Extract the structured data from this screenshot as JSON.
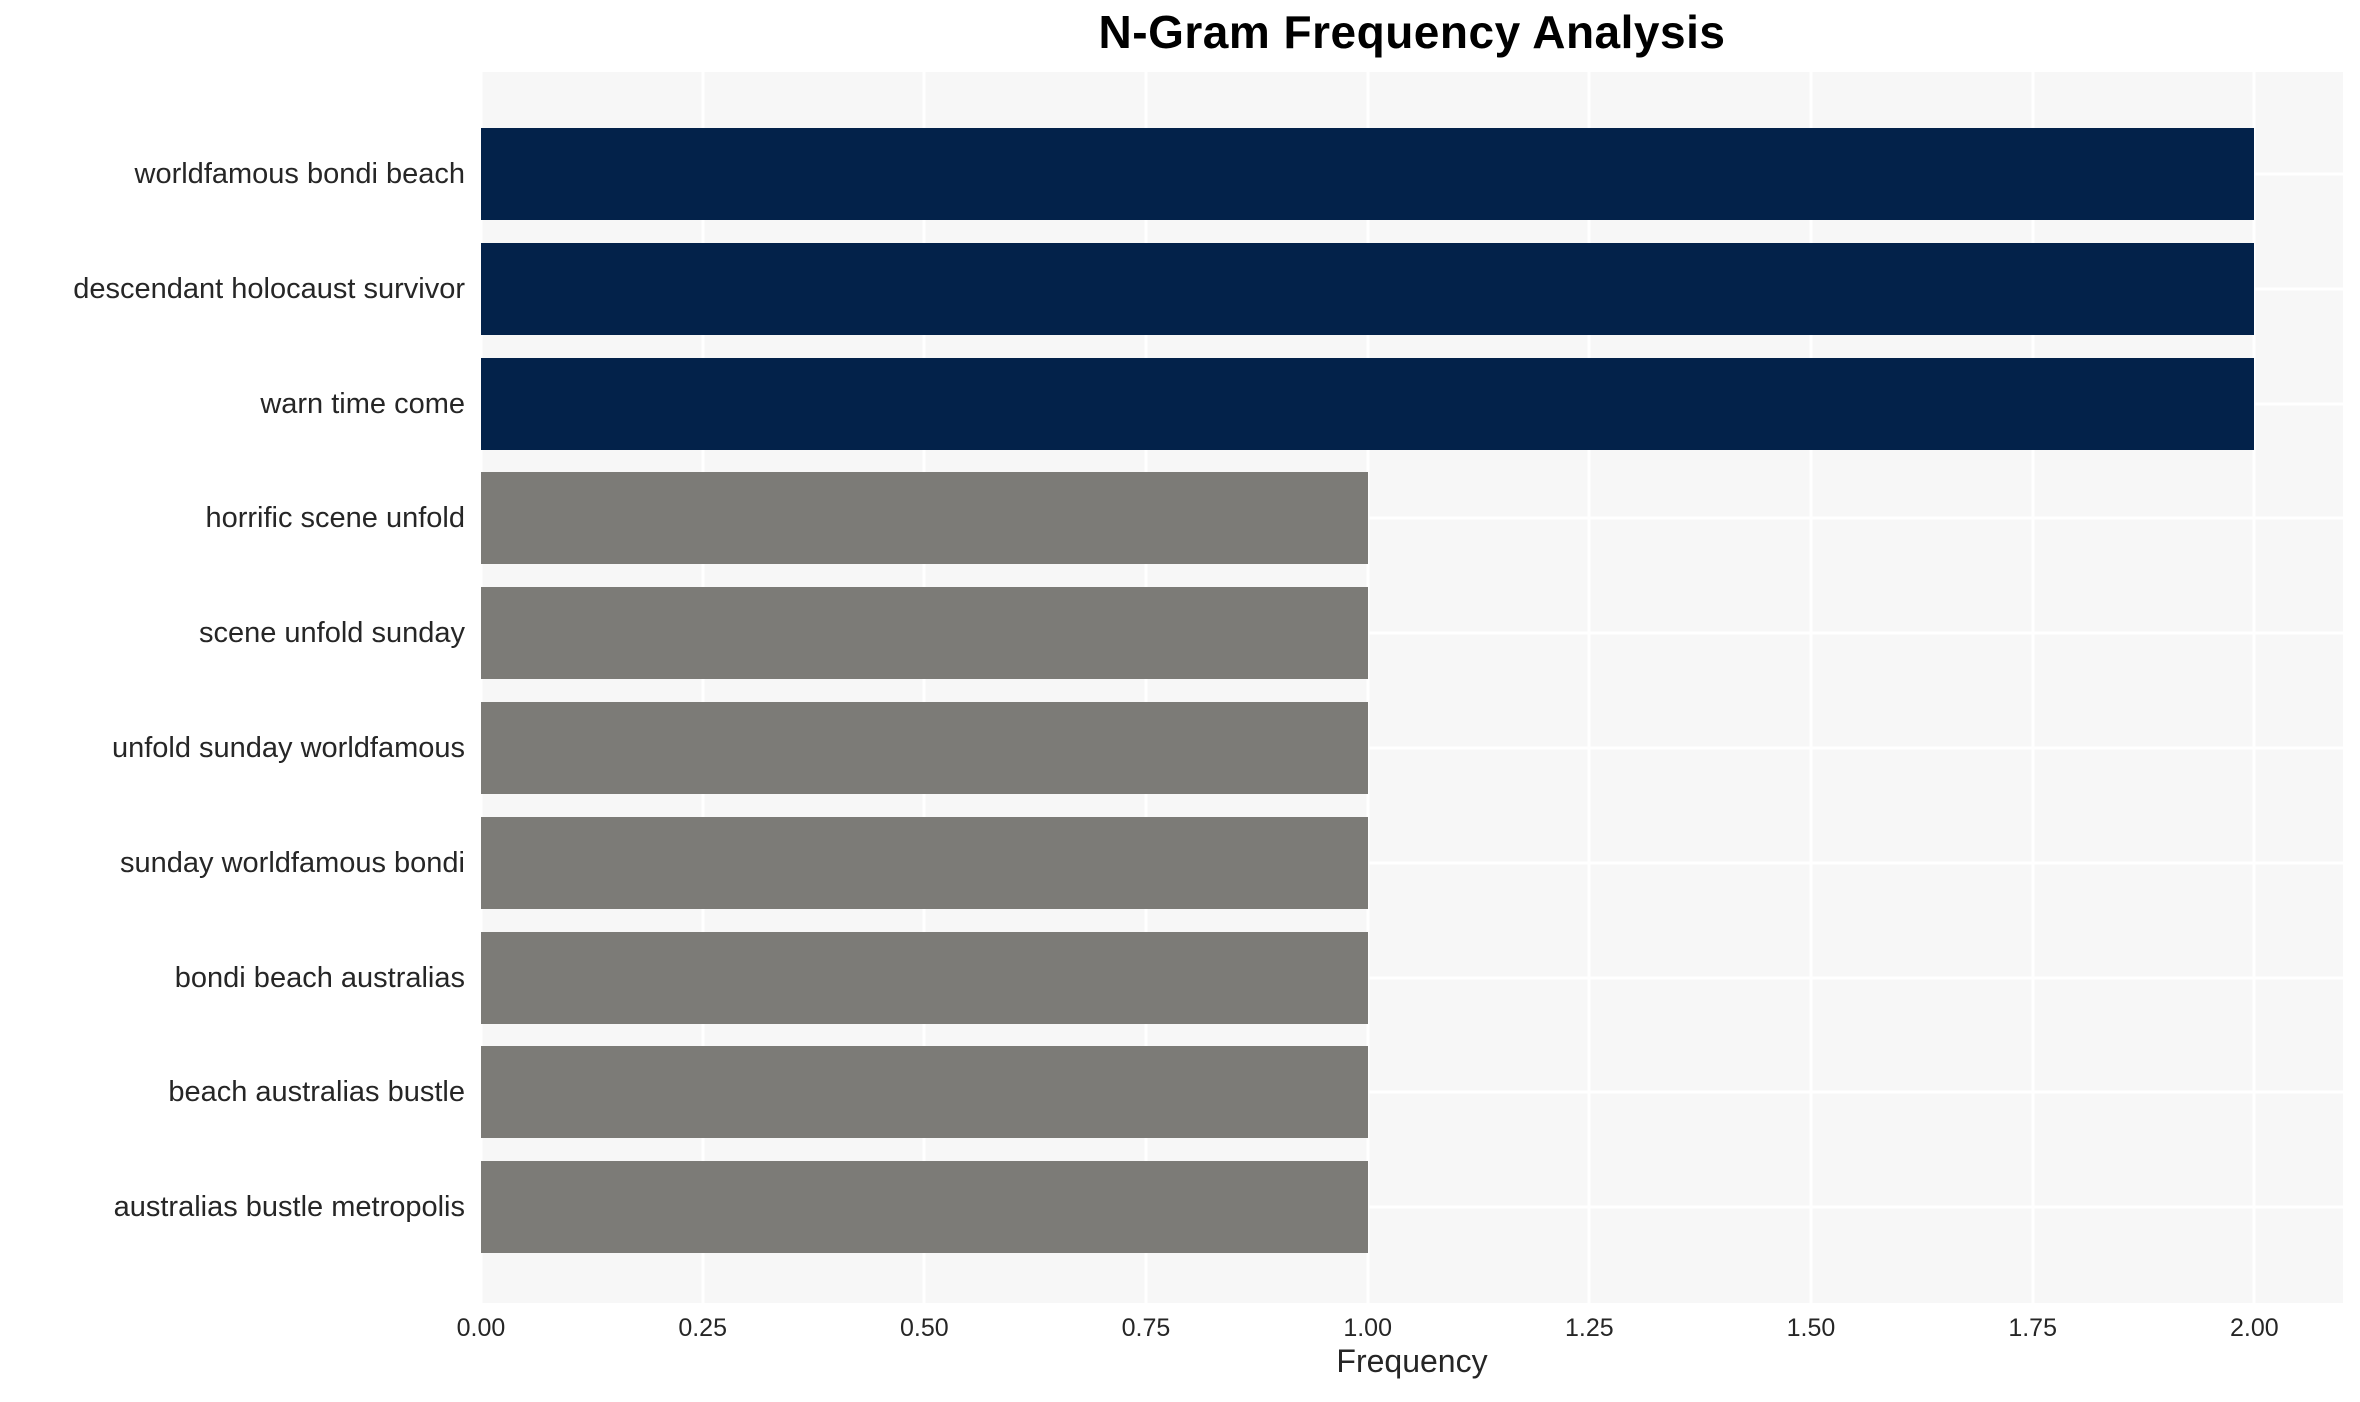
{
  "page": {
    "background_color": "#FFFFFF"
  },
  "chart_data": {
    "type": "bar",
    "orientation": "horizontal",
    "title": "N-Gram Frequency Analysis",
    "xlabel": "Frequency",
    "ylabel": "",
    "categories": [
      "worldfamous bondi beach",
      "descendant holocaust survivor",
      "warn time come",
      "horrific scene unfold",
      "scene unfold sunday",
      "unfold sunday worldfamous",
      "sunday worldfamous bondi",
      "bondi beach australias",
      "beach australias bustle",
      "australias bustle metropolis"
    ],
    "values": [
      2,
      2,
      2,
      1,
      1,
      1,
      1,
      1,
      1,
      1
    ],
    "bar_colors": [
      "#03224A",
      "#03224A",
      "#03224A",
      "#7C7B77",
      "#7C7B77",
      "#7C7B77",
      "#7C7B77",
      "#7C7B77",
      "#7C7B77",
      "#7C7B77"
    ],
    "xlim": [
      0,
      2.1
    ],
    "xticks": [
      0,
      0.25,
      0.5,
      0.75,
      1.0,
      1.25,
      1.5,
      1.75,
      2.0
    ],
    "xtick_labels": [
      "0.00",
      "0.25",
      "0.50",
      "0.75",
      "1.00",
      "1.25",
      "1.50",
      "1.75",
      "2.00"
    ],
    "grid": {
      "shown": true,
      "color": "#FFFFFF",
      "plot_background": "#F7F7F7",
      "vertical_at": "x ticks",
      "horizontal_at": "category centers"
    },
    "legend": {
      "shown": false
    },
    "colors": {
      "highlight": "#03224A",
      "base": "#7C7B77",
      "text": "#262626",
      "title_text": "#000000"
    }
  }
}
